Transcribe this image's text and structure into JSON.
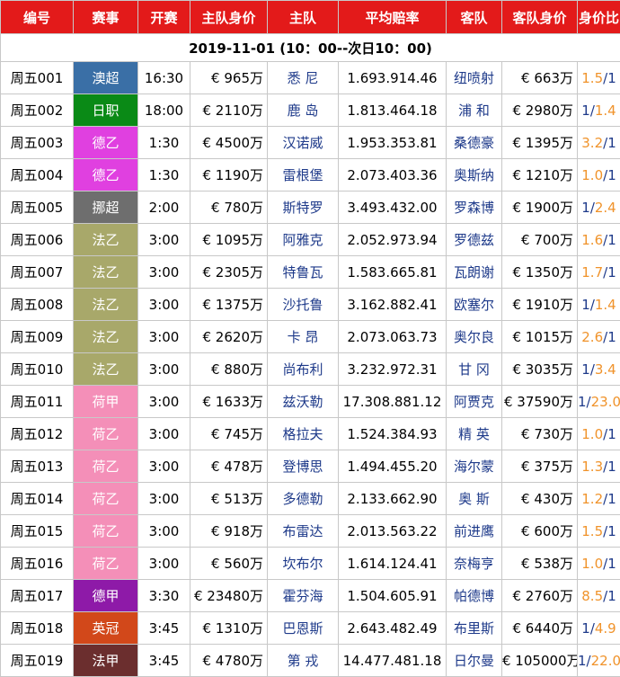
{
  "headers": {
    "id": "编号",
    "league": "赛事",
    "kickoff": "开赛",
    "home_value": "主队身价",
    "home": "主队",
    "avg_odds": "平均赔率",
    "away": "客队",
    "away_value": "客队身价",
    "ratio": "身价比"
  },
  "date_label": "2019-11-01 (10：00--次日10：00)",
  "colors": {
    "header_bg": "#e31a1a",
    "highlight_ratio": "#f0932b",
    "team_text": "#1e3a8a"
  },
  "rows": [
    {
      "id": "周五001",
      "league": "澳超",
      "league_color": "#3a6fa6",
      "time": "16:30",
      "home_value": "€ 965万",
      "home": "悉 尼",
      "odds": "1.693.914.46",
      "away": "纽喷射",
      "away_value": "€ 663万",
      "ratio_a": "1.5",
      "ratio_b": "1",
      "hi": "a"
    },
    {
      "id": "周五002",
      "league": "日职",
      "league_color": "#0a8a16",
      "time": "18:00",
      "home_value": "€ 2110万",
      "home": "鹿 岛",
      "odds": "1.813.464.18",
      "away": "浦 和",
      "away_value": "€ 2980万",
      "ratio_a": "1",
      "ratio_b": "1.4",
      "hi": "b"
    },
    {
      "id": "周五003",
      "league": "德乙",
      "league_color": "#e040e0",
      "time": "1:30",
      "home_value": "€ 4500万",
      "home": "汉诺威",
      "odds": "1.953.353.81",
      "away": "桑德豪",
      "away_value": "€ 1395万",
      "ratio_a": "3.2",
      "ratio_b": "1",
      "hi": "a"
    },
    {
      "id": "周五004",
      "league": "德乙",
      "league_color": "#e040e0",
      "time": "1:30",
      "home_value": "€ 1190万",
      "home": "雷根堡",
      "odds": "2.073.403.36",
      "away": "奥斯纳",
      "away_value": "€ 1210万",
      "ratio_a": "1.0",
      "ratio_b": "1",
      "hi": "a"
    },
    {
      "id": "周五005",
      "league": "挪超",
      "league_color": "#6e6e6e",
      "time": "2:00",
      "home_value": "€ 780万",
      "home": "斯特罗",
      "odds": "3.493.432.00",
      "away": "罗森博",
      "away_value": "€ 1900万",
      "ratio_a": "1",
      "ratio_b": "2.4",
      "hi": "b"
    },
    {
      "id": "周五006",
      "league": "法乙",
      "league_color": "#a8a86a",
      "time": "3:00",
      "home_value": "€ 1095万",
      "home": "阿雅克",
      "odds": "2.052.973.94",
      "away": "罗德兹",
      "away_value": "€ 700万",
      "ratio_a": "1.6",
      "ratio_b": "1",
      "hi": "a"
    },
    {
      "id": "周五007",
      "league": "法乙",
      "league_color": "#a8a86a",
      "time": "3:00",
      "home_value": "€ 2305万",
      "home": "特鲁瓦",
      "odds": "1.583.665.81",
      "away": "瓦朗谢",
      "away_value": "€ 1350万",
      "ratio_a": "1.7",
      "ratio_b": "1",
      "hi": "a"
    },
    {
      "id": "周五008",
      "league": "法乙",
      "league_color": "#a8a86a",
      "time": "3:00",
      "home_value": "€ 1375万",
      "home": "沙托鲁",
      "odds": "3.162.882.41",
      "away": "欧塞尔",
      "away_value": "€ 1910万",
      "ratio_a": "1",
      "ratio_b": "1.4",
      "hi": "b"
    },
    {
      "id": "周五009",
      "league": "法乙",
      "league_color": "#a8a86a",
      "time": "3:00",
      "home_value": "€ 2620万",
      "home": "卡 昂",
      "odds": "2.073.063.73",
      "away": "奥尔良",
      "away_value": "€ 1015万",
      "ratio_a": "2.6",
      "ratio_b": "1",
      "hi": "a"
    },
    {
      "id": "周五010",
      "league": "法乙",
      "league_color": "#a8a86a",
      "time": "3:00",
      "home_value": "€ 880万",
      "home": "尚布利",
      "odds": "3.232.972.31",
      "away": "甘 冈",
      "away_value": "€ 3035万",
      "ratio_a": "1",
      "ratio_b": "3.4",
      "hi": "b"
    },
    {
      "id": "周五011",
      "league": "荷甲",
      "league_color": "#f48fb8",
      "time": "3:00",
      "home_value": "€ 1633万",
      "home": "兹沃勒",
      "odds": "17.308.881.12",
      "away": "阿贾克",
      "away_value": "€ 37590万",
      "ratio_a": "1",
      "ratio_b": "23.0",
      "hi": "b"
    },
    {
      "id": "周五012",
      "league": "荷乙",
      "league_color": "#f48fb8",
      "time": "3:00",
      "home_value": "€ 745万",
      "home": "格拉夫",
      "odds": "1.524.384.93",
      "away": "精 英",
      "away_value": "€ 730万",
      "ratio_a": "1.0",
      "ratio_b": "1",
      "hi": "a"
    },
    {
      "id": "周五013",
      "league": "荷乙",
      "league_color": "#f48fb8",
      "time": "3:00",
      "home_value": "€ 478万",
      "home": "登博思",
      "odds": "1.494.455.20",
      "away": "海尔蒙",
      "away_value": "€ 375万",
      "ratio_a": "1.3",
      "ratio_b": "1",
      "hi": "a"
    },
    {
      "id": "周五014",
      "league": "荷乙",
      "league_color": "#f48fb8",
      "time": "3:00",
      "home_value": "€ 513万",
      "home": "多德勒",
      "odds": "2.133.662.90",
      "away": "奥 斯",
      "away_value": "€ 430万",
      "ratio_a": "1.2",
      "ratio_b": "1",
      "hi": "a"
    },
    {
      "id": "周五015",
      "league": "荷乙",
      "league_color": "#f48fb8",
      "time": "3:00",
      "home_value": "€ 918万",
      "home": "布雷达",
      "odds": "2.013.563.22",
      "away": "前进鹰",
      "away_value": "€ 600万",
      "ratio_a": "1.5",
      "ratio_b": "1",
      "hi": "a"
    },
    {
      "id": "周五016",
      "league": "荷乙",
      "league_color": "#f48fb8",
      "time": "3:00",
      "home_value": "€ 560万",
      "home": "坎布尔",
      "odds": "1.614.124.41",
      "away": "奈梅亨",
      "away_value": "€ 538万",
      "ratio_a": "1.0",
      "ratio_b": "1",
      "hi": "a"
    },
    {
      "id": "周五017",
      "league": "德甲",
      "league_color": "#8e1aa8",
      "time": "3:30",
      "home_value": "€ 23480万",
      "home": "霍芬海",
      "odds": "1.504.605.91",
      "away": "帕德博",
      "away_value": "€ 2760万",
      "ratio_a": "8.5",
      "ratio_b": "1",
      "hi": "a"
    },
    {
      "id": "周五018",
      "league": "英冠",
      "league_color": "#d2481a",
      "time": "3:45",
      "home_value": "€ 1310万",
      "home": "巴恩斯",
      "odds": "2.643.482.49",
      "away": "布里斯",
      "away_value": "€ 6440万",
      "ratio_a": "1",
      "ratio_b": "4.9",
      "hi": "b"
    },
    {
      "id": "周五019",
      "league": "法甲",
      "league_color": "#6b2e2e",
      "time": "3:45",
      "home_value": "€ 4780万",
      "home": "第 戎",
      "odds": "14.477.481.18",
      "away": "日尔曼",
      "away_value": "€ 105000万",
      "ratio_a": "1",
      "ratio_b": "22.0",
      "hi": "b"
    }
  ]
}
